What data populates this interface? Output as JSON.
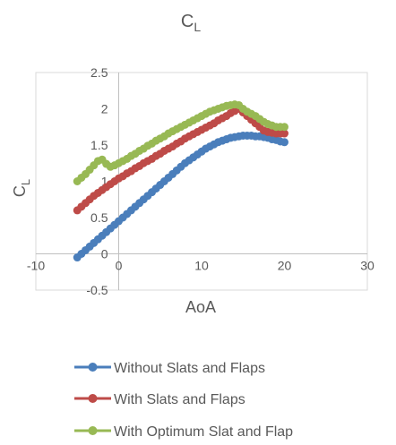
{
  "chart_data": {
    "type": "scatter",
    "title_main": "C",
    "title_sub": "L",
    "xlabel": "AoA",
    "ylabel_main": "C",
    "ylabel_sub": "L",
    "xlim": [
      -10,
      30
    ],
    "ylim": [
      -0.5,
      2.5
    ],
    "x_ticks": [
      -10,
      0,
      10,
      20,
      30
    ],
    "y_ticks": [
      -0.5,
      0,
      0.5,
      1,
      1.5,
      2,
      2.5
    ],
    "x_tick_labels": [
      "-10",
      "0",
      "10",
      "20",
      "30"
    ],
    "y_tick_labels": [
      "-0.5",
      "0",
      "0.5",
      "1",
      "1.5",
      "2",
      "2.5"
    ],
    "grid": false,
    "legend_position": "bottom",
    "series": [
      {
        "name": "Without Slats and Flaps",
        "color": "#4a7ebb",
        "x": [
          -5,
          -4.5,
          -4,
          -3.5,
          -3,
          -2.5,
          -2,
          -1.5,
          -1,
          -0.5,
          0,
          0.5,
          1,
          1.5,
          2,
          2.5,
          3,
          3.5,
          4,
          4.5,
          5,
          5.5,
          6,
          6.5,
          7,
          7.5,
          8,
          8.5,
          9,
          9.5,
          10,
          10.5,
          11,
          11.5,
          12,
          12.5,
          13,
          13.5,
          14,
          14.5,
          15,
          15.5,
          16,
          16.5,
          17,
          17.5,
          18,
          18.5,
          19,
          19.5,
          20
        ],
        "y": [
          -0.05,
          0.0,
          0.05,
          0.1,
          0.15,
          0.2,
          0.25,
          0.3,
          0.35,
          0.4,
          0.45,
          0.5,
          0.55,
          0.6,
          0.65,
          0.7,
          0.75,
          0.8,
          0.85,
          0.9,
          0.95,
          1.0,
          1.05,
          1.1,
          1.15,
          1.2,
          1.25,
          1.29,
          1.33,
          1.37,
          1.41,
          1.45,
          1.48,
          1.51,
          1.54,
          1.56,
          1.58,
          1.6,
          1.61,
          1.62,
          1.63,
          1.63,
          1.63,
          1.62,
          1.62,
          1.61,
          1.6,
          1.58,
          1.57,
          1.55,
          1.54
        ]
      },
      {
        "name": "With Slats and Flaps",
        "color": "#be4b48",
        "x": [
          -5,
          -4.5,
          -4,
          -3.5,
          -3,
          -2.5,
          -2,
          -1.5,
          -1,
          -0.5,
          0,
          0.5,
          1,
          1.5,
          2,
          2.5,
          3,
          3.5,
          4,
          4.5,
          5,
          5.5,
          6,
          6.5,
          7,
          7.5,
          8,
          8.5,
          9,
          9.5,
          10,
          10.5,
          11,
          11.5,
          12,
          12.5,
          13,
          13.5,
          14,
          14.5,
          15,
          15.5,
          16,
          16.5,
          17,
          17.5,
          18,
          18.5,
          19,
          19.5,
          20
        ],
        "y": [
          0.6,
          0.65,
          0.7,
          0.75,
          0.8,
          0.84,
          0.88,
          0.92,
          0.96,
          1.0,
          1.04,
          1.07,
          1.11,
          1.14,
          1.18,
          1.21,
          1.25,
          1.28,
          1.31,
          1.35,
          1.38,
          1.42,
          1.45,
          1.48,
          1.52,
          1.55,
          1.59,
          1.62,
          1.65,
          1.68,
          1.71,
          1.74,
          1.77,
          1.8,
          1.84,
          1.87,
          1.9,
          1.94,
          1.97,
          2.0,
          1.95,
          1.9,
          1.85,
          1.8,
          1.75,
          1.7,
          1.68,
          1.67,
          1.66,
          1.66,
          1.66
        ]
      },
      {
        "name": "With Optimum Slat and Flap",
        "color": "#98b954",
        "x": [
          -5,
          -4.5,
          -4,
          -3.5,
          -3,
          -2.5,
          -2,
          -1.5,
          -1,
          -0.5,
          0,
          0.5,
          1,
          1.5,
          2,
          2.5,
          3,
          3.5,
          4,
          4.5,
          5,
          5.5,
          6,
          6.5,
          7,
          7.5,
          8,
          8.5,
          9,
          9.5,
          10,
          10.5,
          11,
          11.5,
          12,
          12.5,
          13,
          13.5,
          14,
          14.5,
          15,
          15.5,
          16,
          16.5,
          17,
          17.5,
          18,
          18.5,
          19,
          19.5,
          20
        ],
        "y": [
          1.0,
          1.05,
          1.1,
          1.16,
          1.22,
          1.28,
          1.3,
          1.24,
          1.2,
          1.22,
          1.25,
          1.28,
          1.31,
          1.35,
          1.38,
          1.42,
          1.45,
          1.49,
          1.52,
          1.56,
          1.59,
          1.62,
          1.66,
          1.69,
          1.72,
          1.75,
          1.78,
          1.81,
          1.84,
          1.87,
          1.9,
          1.93,
          1.96,
          1.98,
          2.0,
          2.02,
          2.04,
          2.05,
          2.06,
          2.05,
          2.0,
          1.96,
          1.93,
          1.9,
          1.86,
          1.82,
          1.79,
          1.77,
          1.75,
          1.75,
          1.75
        ]
      }
    ]
  }
}
